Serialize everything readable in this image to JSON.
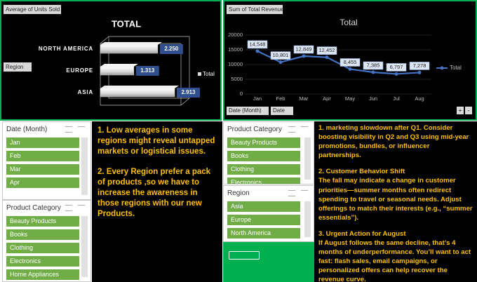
{
  "chart_data": [
    {
      "type": "bar",
      "button": "Average of Units Sold",
      "title": "TOTAL",
      "filter_button": "Region",
      "categories": [
        "NORTH AMERICA",
        "EUROPE",
        "ASIA"
      ],
      "series": [
        {
          "name": "Total",
          "color": "#d9d9d9",
          "values": [
            2.25,
            1.313,
            2.913
          ],
          "value_labels": [
            "2.250",
            "1.313",
            "2.913"
          ]
        }
      ]
    },
    {
      "type": "line",
      "button": "Sum of Total Revenue",
      "title": "Total",
      "filter_buttons": [
        "Date (Month)",
        "Date"
      ],
      "zoom_buttons": [
        "+",
        "-"
      ],
      "categories": [
        "Jan",
        "Feb",
        "Mar",
        "Apr",
        "May",
        "Jun",
        "Jul",
        "Aug"
      ],
      "series": [
        {
          "name": "Total",
          "color": "#4472c4",
          "values": [
            14548,
            10801,
            12849,
            12452,
            8455,
            7385,
            6797,
            7278
          ],
          "value_labels": [
            "14,548",
            "10,801",
            "12,849",
            "12,452",
            "8,455",
            "7,385",
            "6,797",
            "7,278"
          ]
        }
      ],
      "ylim": [
        0,
        20000
      ],
      "yticks": [
        0,
        5000,
        10000,
        15000,
        20000
      ],
      "grid": true
    }
  ],
  "slicers": [
    {
      "title": "Date (Month)",
      "items": [
        "Jan",
        "Feb",
        "Mar",
        "Apr"
      ]
    },
    {
      "title": "Product Category",
      "items": [
        "Beauty Products",
        "Books",
        "Clothing",
        "Electronics",
        "Home Appliances"
      ]
    },
    {
      "title": "Product Category",
      "items": [
        "Beauty Products",
        "Books",
        "Clothing",
        "Electronics"
      ]
    },
    {
      "title": "Region",
      "items": [
        "Asia",
        "Europe",
        "North America"
      ]
    }
  ],
  "notes": {
    "left": [
      "1. Low averages in some regions might reveal untapped markets or logistical issues.",
      "2. Every Region prefer a pack of products ,so we have to increase the awareness in those regions with our new Products."
    ],
    "right": [
      "1. marketing slowdown after Q1. Consider boosting visibility in Q2 and Q3 using mid-year promotions, bundles, or influencer partnerships.",
      "2. Customer Behavior Shift",
      "The fall may indicate a change in customer priorities—summer months often redirect spending to travel or seasonal needs. Adjust offerings to match their interests (e.g., “summer essentials”).",
      "3. Urgent Action for August",
      "If August follows the same decline, that’s 4 months of underperformance. You’ll want to act fast: flash sales, email campaigns, or personalized offers can help recover the revenue curve."
    ]
  }
}
